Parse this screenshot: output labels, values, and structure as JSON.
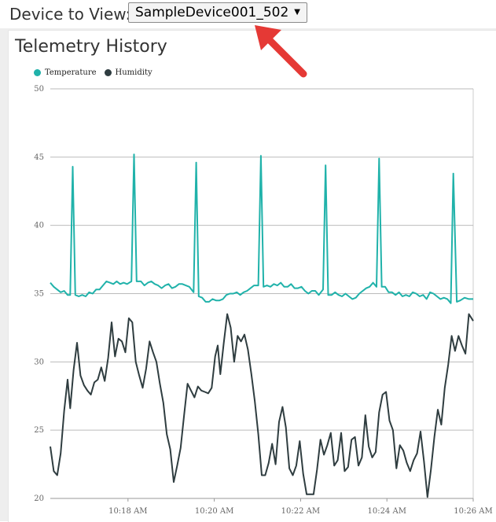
{
  "header": {
    "device_label": "Device to View:",
    "device_select_value": "SampleDevice001_502"
  },
  "panel": {
    "title": "Telemetry History"
  },
  "colors": {
    "temperature": "#20b2aa",
    "humidity": "#2f3d40",
    "annotation_arrow": "#e53935"
  },
  "chart_data": {
    "type": "line",
    "title": "Telemetry History",
    "legend": [
      "Temperature",
      "Humidity"
    ],
    "legend_position": "top-left",
    "grid": true,
    "y_ticks": [
      "20",
      "25",
      "30",
      "35",
      "40",
      "45",
      "50"
    ],
    "ylim": [
      20,
      50
    ],
    "x_ticks": [
      "10:18 AM",
      "10:20 AM",
      "10:22 AM",
      "10:24 AM",
      "10:26 AM"
    ],
    "x_tick_minutes": [
      18,
      20,
      22,
      24,
      26
    ],
    "xlim_minutes": [
      16.2,
      26.0
    ],
    "series": [
      {
        "name": "Temperature",
        "color": "#20b2aa",
        "points": [
          [
            16.2,
            35.8
          ],
          [
            16.28,
            35.5
          ],
          [
            16.36,
            35.3
          ],
          [
            16.44,
            35.1
          ],
          [
            16.52,
            35.2
          ],
          [
            16.6,
            34.9
          ],
          [
            16.66,
            34.9
          ],
          [
            16.72,
            44.3
          ],
          [
            16.78,
            34.9
          ],
          [
            16.86,
            34.8
          ],
          [
            16.94,
            34.9
          ],
          [
            17.02,
            34.8
          ],
          [
            17.1,
            35.1
          ],
          [
            17.18,
            35.0
          ],
          [
            17.26,
            35.3
          ],
          [
            17.34,
            35.3
          ],
          [
            17.42,
            35.6
          ],
          [
            17.5,
            35.9
          ],
          [
            17.58,
            35.8
          ],
          [
            17.66,
            35.7
          ],
          [
            17.74,
            35.9
          ],
          [
            17.82,
            35.7
          ],
          [
            17.9,
            35.8
          ],
          [
            17.98,
            35.7
          ],
          [
            18.08,
            35.9
          ],
          [
            18.14,
            45.2
          ],
          [
            18.2,
            35.9
          ],
          [
            18.3,
            35.9
          ],
          [
            18.38,
            35.6
          ],
          [
            18.46,
            35.8
          ],
          [
            18.54,
            35.9
          ],
          [
            18.62,
            35.7
          ],
          [
            18.7,
            35.6
          ],
          [
            18.78,
            35.4
          ],
          [
            18.86,
            35.6
          ],
          [
            18.94,
            35.7
          ],
          [
            19.02,
            35.4
          ],
          [
            19.1,
            35.5
          ],
          [
            19.18,
            35.7
          ],
          [
            19.26,
            35.7
          ],
          [
            19.34,
            35.6
          ],
          [
            19.42,
            35.5
          ],
          [
            19.52,
            35.1
          ],
          [
            19.58,
            44.6
          ],
          [
            19.64,
            34.8
          ],
          [
            19.72,
            34.7
          ],
          [
            19.8,
            34.4
          ],
          [
            19.88,
            34.4
          ],
          [
            19.96,
            34.6
          ],
          [
            20.04,
            34.5
          ],
          [
            20.12,
            34.5
          ],
          [
            20.2,
            34.6
          ],
          [
            20.28,
            34.9
          ],
          [
            20.36,
            35.0
          ],
          [
            20.44,
            35.0
          ],
          [
            20.52,
            35.1
          ],
          [
            20.6,
            34.9
          ],
          [
            20.68,
            35.1
          ],
          [
            20.76,
            35.2
          ],
          [
            20.84,
            35.4
          ],
          [
            20.92,
            35.6
          ],
          [
            21.02,
            35.6
          ],
          [
            21.08,
            45.1
          ],
          [
            21.14,
            35.5
          ],
          [
            21.22,
            35.6
          ],
          [
            21.3,
            35.5
          ],
          [
            21.38,
            35.7
          ],
          [
            21.46,
            35.6
          ],
          [
            21.54,
            35.8
          ],
          [
            21.62,
            35.5
          ],
          [
            21.7,
            35.5
          ],
          [
            21.78,
            35.7
          ],
          [
            21.86,
            35.4
          ],
          [
            21.94,
            35.4
          ],
          [
            22.02,
            35.5
          ],
          [
            22.1,
            35.2
          ],
          [
            22.18,
            35.0
          ],
          [
            22.26,
            35.2
          ],
          [
            22.34,
            35.2
          ],
          [
            22.42,
            34.9
          ],
          [
            22.52,
            35.3
          ],
          [
            22.58,
            44.4
          ],
          [
            22.64,
            34.9
          ],
          [
            22.72,
            34.9
          ],
          [
            22.8,
            35.1
          ],
          [
            22.88,
            34.9
          ],
          [
            22.96,
            34.8
          ],
          [
            23.04,
            35.0
          ],
          [
            23.12,
            34.8
          ],
          [
            23.2,
            34.6
          ],
          [
            23.28,
            34.7
          ],
          [
            23.36,
            35.0
          ],
          [
            23.44,
            35.2
          ],
          [
            23.52,
            35.4
          ],
          [
            23.6,
            35.5
          ],
          [
            23.68,
            35.8
          ],
          [
            23.76,
            35.5
          ],
          [
            23.82,
            44.9
          ],
          [
            23.88,
            35.5
          ],
          [
            23.96,
            35.5
          ],
          [
            24.04,
            35.1
          ],
          [
            24.12,
            35.1
          ],
          [
            24.2,
            34.9
          ],
          [
            24.28,
            35.1
          ],
          [
            24.36,
            34.8
          ],
          [
            24.44,
            34.9
          ],
          [
            24.52,
            34.8
          ],
          [
            24.6,
            35.1
          ],
          [
            24.68,
            35.0
          ],
          [
            24.76,
            34.8
          ],
          [
            24.84,
            34.9
          ],
          [
            24.92,
            34.6
          ],
          [
            25.0,
            35.1
          ],
          [
            25.08,
            35.0
          ],
          [
            25.16,
            34.8
          ],
          [
            25.24,
            34.6
          ],
          [
            25.32,
            34.7
          ],
          [
            25.4,
            34.6
          ],
          [
            25.48,
            34.3
          ],
          [
            25.54,
            43.8
          ],
          [
            25.62,
            34.4
          ],
          [
            25.7,
            34.5
          ],
          [
            25.8,
            34.7
          ],
          [
            25.9,
            34.6
          ],
          [
            26.0,
            34.6
          ]
        ]
      },
      {
        "name": "Humidity",
        "color": "#2f3d40",
        "points": [
          [
            16.2,
            23.8
          ],
          [
            16.28,
            22.0
          ],
          [
            16.36,
            21.7
          ],
          [
            16.44,
            23.3
          ],
          [
            16.52,
            26.4
          ],
          [
            16.6,
            28.7
          ],
          [
            16.66,
            26.6
          ],
          [
            16.74,
            29.4
          ],
          [
            16.82,
            31.4
          ],
          [
            16.9,
            29.0
          ],
          [
            16.98,
            28.3
          ],
          [
            17.06,
            27.9
          ],
          [
            17.14,
            27.6
          ],
          [
            17.22,
            28.5
          ],
          [
            17.3,
            28.7
          ],
          [
            17.38,
            29.6
          ],
          [
            17.46,
            28.6
          ],
          [
            17.54,
            30.3
          ],
          [
            17.62,
            32.9
          ],
          [
            17.7,
            30.4
          ],
          [
            17.78,
            31.7
          ],
          [
            17.86,
            31.5
          ],
          [
            17.94,
            30.7
          ],
          [
            18.02,
            33.2
          ],
          [
            18.1,
            32.9
          ],
          [
            18.18,
            30.0
          ],
          [
            18.26,
            29.0
          ],
          [
            18.34,
            28.1
          ],
          [
            18.42,
            29.5
          ],
          [
            18.5,
            31.5
          ],
          [
            18.58,
            30.7
          ],
          [
            18.66,
            30.0
          ],
          [
            18.74,
            28.4
          ],
          [
            18.82,
            27.0
          ],
          [
            18.9,
            24.7
          ],
          [
            18.98,
            23.6
          ],
          [
            19.06,
            21.2
          ],
          [
            19.14,
            22.4
          ],
          [
            19.22,
            23.7
          ],
          [
            19.3,
            26.1
          ],
          [
            19.38,
            28.4
          ],
          [
            19.46,
            27.9
          ],
          [
            19.54,
            27.4
          ],
          [
            19.62,
            28.2
          ],
          [
            19.7,
            27.9
          ],
          [
            19.78,
            27.8
          ],
          [
            19.86,
            27.7
          ],
          [
            19.94,
            28.1
          ],
          [
            20.02,
            30.4
          ],
          [
            20.08,
            31.2
          ],
          [
            20.14,
            29.1
          ],
          [
            20.22,
            31.4
          ],
          [
            20.3,
            33.5
          ],
          [
            20.38,
            32.5
          ],
          [
            20.46,
            30.0
          ],
          [
            20.54,
            31.9
          ],
          [
            20.62,
            31.5
          ],
          [
            20.7,
            32.0
          ],
          [
            20.78,
            30.9
          ],
          [
            20.86,
            29.1
          ],
          [
            20.94,
            27.1
          ],
          [
            21.02,
            24.7
          ],
          [
            21.1,
            21.7
          ],
          [
            21.18,
            21.7
          ],
          [
            21.26,
            22.6
          ],
          [
            21.34,
            24.0
          ],
          [
            21.42,
            22.5
          ],
          [
            21.5,
            25.6
          ],
          [
            21.58,
            26.7
          ],
          [
            21.66,
            25.2
          ],
          [
            21.74,
            22.2
          ],
          [
            21.82,
            21.7
          ],
          [
            21.9,
            22.4
          ],
          [
            21.98,
            24.2
          ],
          [
            22.06,
            21.8
          ],
          [
            22.14,
            20.3
          ],
          [
            22.22,
            20.3
          ],
          [
            22.3,
            20.3
          ],
          [
            22.38,
            22.1
          ],
          [
            22.46,
            24.3
          ],
          [
            22.54,
            23.2
          ],
          [
            22.62,
            23.9
          ],
          [
            22.7,
            24.8
          ],
          [
            22.78,
            22.4
          ],
          [
            22.86,
            22.8
          ],
          [
            22.94,
            24.8
          ],
          [
            23.02,
            22.0
          ],
          [
            23.1,
            22.3
          ],
          [
            23.18,
            24.3
          ],
          [
            23.26,
            24.5
          ],
          [
            23.34,
            22.4
          ],
          [
            23.42,
            23.0
          ],
          [
            23.5,
            26.1
          ],
          [
            23.58,
            23.8
          ],
          [
            23.66,
            23.0
          ],
          [
            23.74,
            23.4
          ],
          [
            23.82,
            26.3
          ],
          [
            23.9,
            27.6
          ],
          [
            23.98,
            27.8
          ],
          [
            24.06,
            25.7
          ],
          [
            24.14,
            25.0
          ],
          [
            24.22,
            22.2
          ],
          [
            24.3,
            23.9
          ],
          [
            24.38,
            23.5
          ],
          [
            24.46,
            22.6
          ],
          [
            24.54,
            22.0
          ],
          [
            24.62,
            22.8
          ],
          [
            24.7,
            23.3
          ],
          [
            24.78,
            24.9
          ],
          [
            24.86,
            22.7
          ],
          [
            24.94,
            20.1
          ],
          [
            25.02,
            22.1
          ],
          [
            25.1,
            24.5
          ],
          [
            25.18,
            26.5
          ],
          [
            25.26,
            25.4
          ],
          [
            25.34,
            28.1
          ],
          [
            25.42,
            29.8
          ],
          [
            25.5,
            31.9
          ],
          [
            25.58,
            30.8
          ],
          [
            25.66,
            31.9
          ],
          [
            25.74,
            31.2
          ],
          [
            25.82,
            30.6
          ],
          [
            25.9,
            33.5
          ],
          [
            26.0,
            33.0
          ]
        ]
      }
    ]
  }
}
